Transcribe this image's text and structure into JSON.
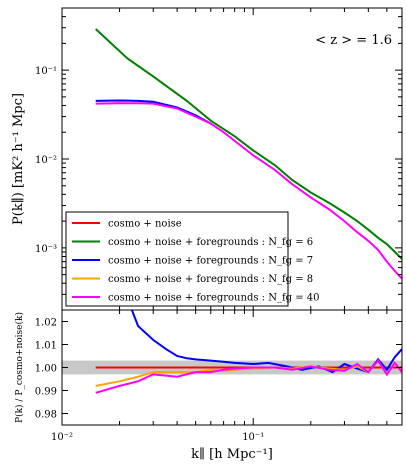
{
  "chart_data": [
    {
      "type": "line",
      "panel": "top",
      "annotation": "< z > = 1.6",
      "ylabel": "P(k∥) [mK² h⁻¹ Mpc]",
      "xlabel": "",
      "xscale": "log",
      "yscale": "log",
      "xlim": [
        0.01,
        0.6
      ],
      "ylim": [
        0.0002,
        0.5
      ],
      "grid": false,
      "legend_position": "lower-left",
      "x_tick_labels": [],
      "y_tick_labels": [
        "10⁻³",
        "10⁻²",
        "10⁻¹"
      ],
      "y_tick_values": [
        0.001,
        0.01,
        0.1
      ],
      "series": [
        {
          "name": "cosmo + noise",
          "color": "#ff0000",
          "x": [],
          "y": []
        },
        {
          "name": "cosmo + noise + foregrounds : N_fg = 6",
          "color": "#008000",
          "x": [
            0.015,
            0.022,
            0.03,
            0.045,
            0.06,
            0.08,
            0.1,
            0.13,
            0.16,
            0.2,
            0.25,
            0.3,
            0.35,
            0.4,
            0.45,
            0.5,
            0.55,
            0.6
          ],
          "y": [
            0.29,
            0.135,
            0.085,
            0.045,
            0.027,
            0.018,
            0.0125,
            0.0085,
            0.0058,
            0.0042,
            0.0032,
            0.0025,
            0.002,
            0.0016,
            0.0013,
            0.0011,
            0.0009,
            0.00075
          ]
        },
        {
          "name": "cosmo + noise + foregrounds : N_fg = 7",
          "color": "#0000ff",
          "x": [
            0.015,
            0.02,
            0.025,
            0.03,
            0.04,
            0.05,
            0.06
          ],
          "y": [
            0.045,
            0.0455,
            0.045,
            0.044,
            0.038,
            0.031,
            0.025
          ]
        },
        {
          "name": "cosmo + noise + foregrounds : N_fg = 8",
          "color": "#ffa500",
          "x": [],
          "y": []
        },
        {
          "name": "cosmo + noise + foregrounds : N_fg = 40",
          "color": "#ff00ff",
          "x": [
            0.015,
            0.02,
            0.025,
            0.03,
            0.04,
            0.05,
            0.06,
            0.07,
            0.08,
            0.1,
            0.13,
            0.16,
            0.2,
            0.25,
            0.3,
            0.35,
            0.4,
            0.45,
            0.5,
            0.55,
            0.6
          ],
          "y": [
            0.042,
            0.0425,
            0.0425,
            0.042,
            0.037,
            0.03,
            0.025,
            0.02,
            0.016,
            0.011,
            0.0075,
            0.0052,
            0.0037,
            0.0027,
            0.002,
            0.0015,
            0.0012,
            0.00095,
            0.0007,
            0.00055,
            0.00045
          ]
        }
      ]
    },
    {
      "type": "line",
      "panel": "bottom",
      "ylabel": "P(k) / P_cosmo+noise(k)",
      "xlabel": "k∥ [h Mpc⁻¹]",
      "xscale": "log",
      "xlim": [
        0.01,
        0.6
      ],
      "ylim": [
        0.975,
        1.025
      ],
      "grid": false,
      "band": {
        "lower": 0.997,
        "upper": 1.003,
        "color": "#c8c8c8"
      },
      "x_tick_labels": [
        "10⁻²",
        "10⁻¹"
      ],
      "x_tick_values": [
        0.01,
        0.1
      ],
      "y_tick_labels": [
        "0.98",
        "0.99",
        "1.00",
        "1.01",
        "1.02"
      ],
      "y_tick_values": [
        0.98,
        0.99,
        1.0,
        1.01,
        1.02
      ],
      "series": [
        {
          "name": "cosmo + noise",
          "color": "#ff0000",
          "x": [
            0.015,
            0.6
          ],
          "y": [
            1.0,
            1.0
          ]
        },
        {
          "name": "N_fg = 7",
          "color": "#0000ff",
          "x": [
            0.022,
            0.025,
            0.03,
            0.035,
            0.04,
            0.045,
            0.05,
            0.06,
            0.07,
            0.08,
            0.1,
            0.12,
            0.15,
            0.18,
            0.22,
            0.26,
            0.3,
            0.35,
            0.4,
            0.45,
            0.5,
            0.55,
            0.6
          ],
          "y": [
            1.03,
            1.018,
            1.012,
            1.008,
            1.005,
            1.004,
            1.0035,
            1.003,
            1.0025,
            1.002,
            1.0015,
            1.002,
            1.0005,
            0.999,
            1.0005,
            0.998,
            1.0015,
            0.9995,
            0.998,
            1.0035,
            0.999,
            1.0045,
            1.008
          ]
        },
        {
          "name": "N_fg = 8",
          "color": "#ffa500",
          "x": [
            0.015,
            0.02,
            0.025,
            0.03,
            0.04,
            0.05,
            0.06,
            0.07,
            0.08,
            0.1,
            0.13,
            0.16,
            0.2,
            0.25,
            0.3,
            0.35,
            0.4,
            0.45,
            0.5,
            0.55,
            0.6
          ],
          "y": [
            0.992,
            0.994,
            0.996,
            0.998,
            0.998,
            0.998,
            0.999,
            0.9985,
            0.999,
            0.9995,
            1.0,
            0.9995,
            1.0005,
            0.9995,
            0.999,
            1.0005,
            0.998,
            1.003,
            0.997,
            1.002,
            0.9985
          ]
        },
        {
          "name": "N_fg = 40",
          "color": "#ff00ff",
          "x": [
            0.015,
            0.02,
            0.025,
            0.03,
            0.04,
            0.05,
            0.06,
            0.07,
            0.08,
            0.1,
            0.13,
            0.16,
            0.2,
            0.25,
            0.3,
            0.35,
            0.4,
            0.45,
            0.5,
            0.55,
            0.6
          ],
          "y": [
            0.989,
            0.992,
            0.994,
            0.997,
            0.996,
            0.998,
            0.998,
            0.999,
            0.9995,
            1.0,
            1.0,
            0.999,
            1.0005,
            0.999,
            0.9985,
            1.0015,
            0.998,
            1.003,
            0.997,
            1.002,
            0.998
          ]
        }
      ]
    }
  ]
}
